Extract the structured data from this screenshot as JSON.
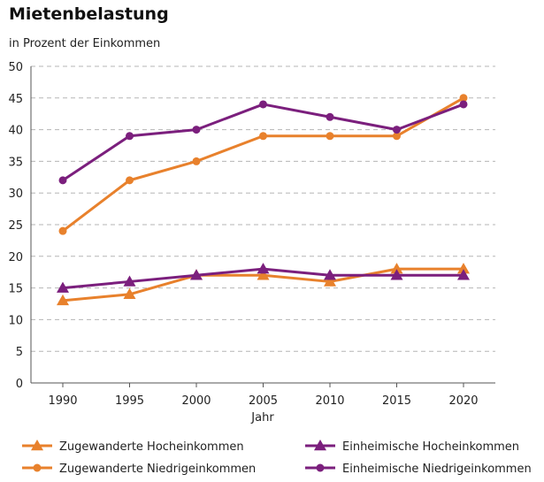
{
  "chart_data": {
    "type": "line",
    "title": "Mietenbelastung",
    "ylabel": "in Prozent der Einkommen",
    "xlabel": "Jahr",
    "x": [
      1990,
      1995,
      2000,
      2005,
      2010,
      2015,
      2020
    ],
    "ylim": [
      0,
      50
    ],
    "yticks": [
      0,
      5,
      10,
      15,
      20,
      25,
      30,
      35,
      40,
      45,
      50
    ],
    "grid": true,
    "legend_position": "bottom",
    "series": [
      {
        "name": "Zugewanderte Hocheinkommen",
        "values": [
          13,
          14,
          17,
          17,
          16,
          18,
          18
        ],
        "color": "#e8812c",
        "marker": "triangle"
      },
      {
        "name": "Zugewanderte Niedrigeinkommen",
        "values": [
          24,
          32,
          35,
          39,
          39,
          39,
          45
        ],
        "color": "#e8812c",
        "marker": "circle"
      },
      {
        "name": "Einheimische Hocheinkommen",
        "values": [
          15,
          16,
          17,
          18,
          17,
          17,
          17
        ],
        "color": "#7b1f7d",
        "marker": "triangle"
      },
      {
        "name": "Einheimische Niedrigeinkommen",
        "values": [
          32,
          39,
          40,
          44,
          42,
          40,
          44
        ],
        "color": "#7b1f7d",
        "marker": "circle"
      }
    ]
  }
}
